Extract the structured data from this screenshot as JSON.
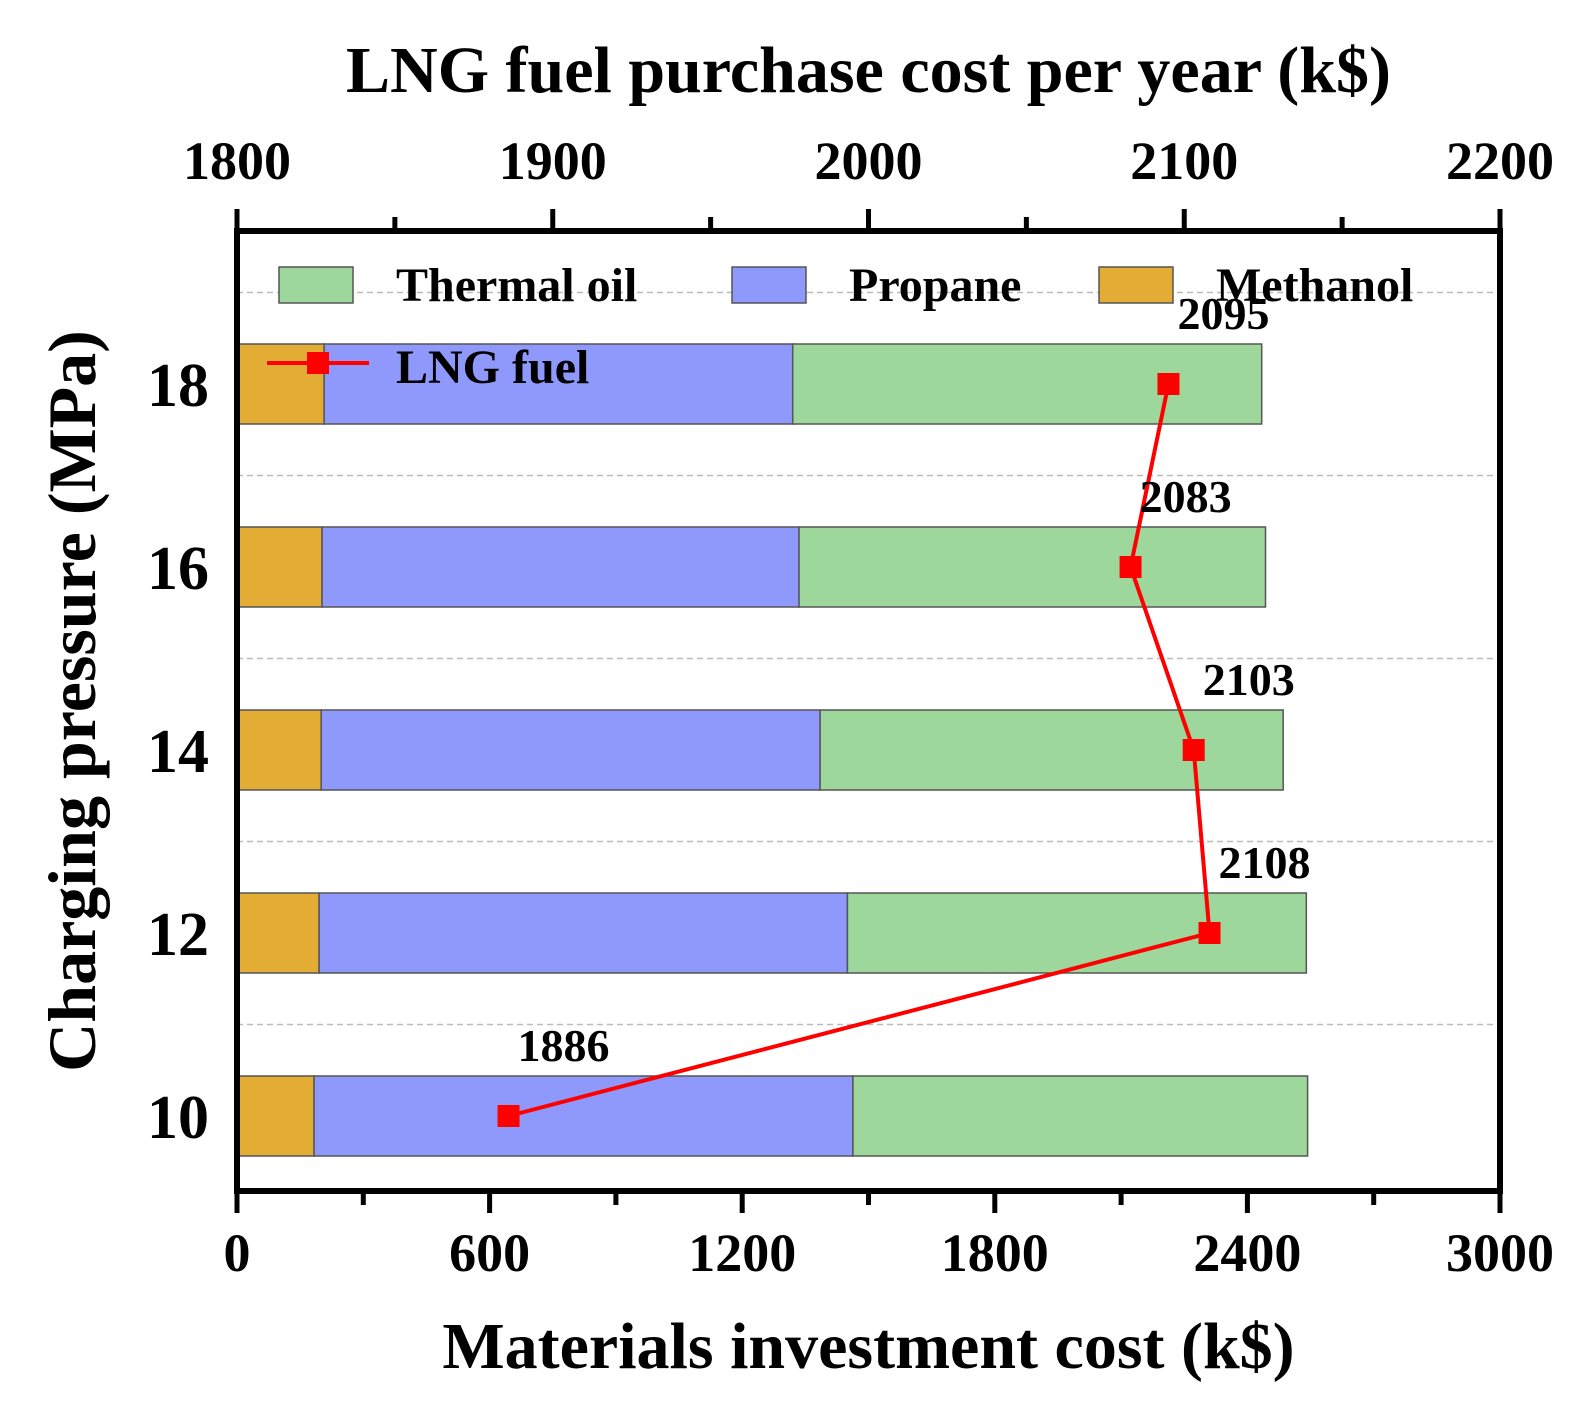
{
  "chart_data": {
    "type": "bar",
    "orientation": "horizontal",
    "stacked": true,
    "title": "",
    "xlabel": "Materials investment cost (k$)",
    "ylabel": "Charging pressure (MPa)",
    "top_xlabel": "LNG fuel purchase cost per year (k$)",
    "categories": [
      "10",
      "12",
      "14",
      "16",
      "18"
    ],
    "xlim": [
      0,
      3000
    ],
    "xticks": [
      "0",
      "600",
      "1200",
      "1800",
      "2400",
      "3000"
    ],
    "top_xlim": [
      1800,
      2200
    ],
    "top_xticks": [
      "1800",
      "1900",
      "2000",
      "2100",
      "2200"
    ],
    "grid": "dashed horizontal separators between categories",
    "legend_position": "top-left inside plot",
    "series": [
      {
        "name": "Methanol",
        "color": "#e2ac35",
        "values": [
          183,
          195,
          200,
          202,
          207
        ]
      },
      {
        "name": "Propane",
        "color": "#8f99fb",
        "values": [
          1280,
          1255,
          1185,
          1133,
          1113
        ]
      },
      {
        "name": "Thermal oil",
        "color": "#9ed79b",
        "values": [
          1080,
          1090,
          1100,
          1108,
          1114
        ]
      }
    ],
    "line_series": {
      "name": "LNG fuel",
      "axis": "top",
      "color": "#ff0000",
      "marker": "square",
      "values": [
        1886,
        2108,
        2103,
        2083,
        2095
      ],
      "labels": [
        "1886",
        "2108",
        "2103",
        "2083",
        "2095"
      ]
    }
  }
}
